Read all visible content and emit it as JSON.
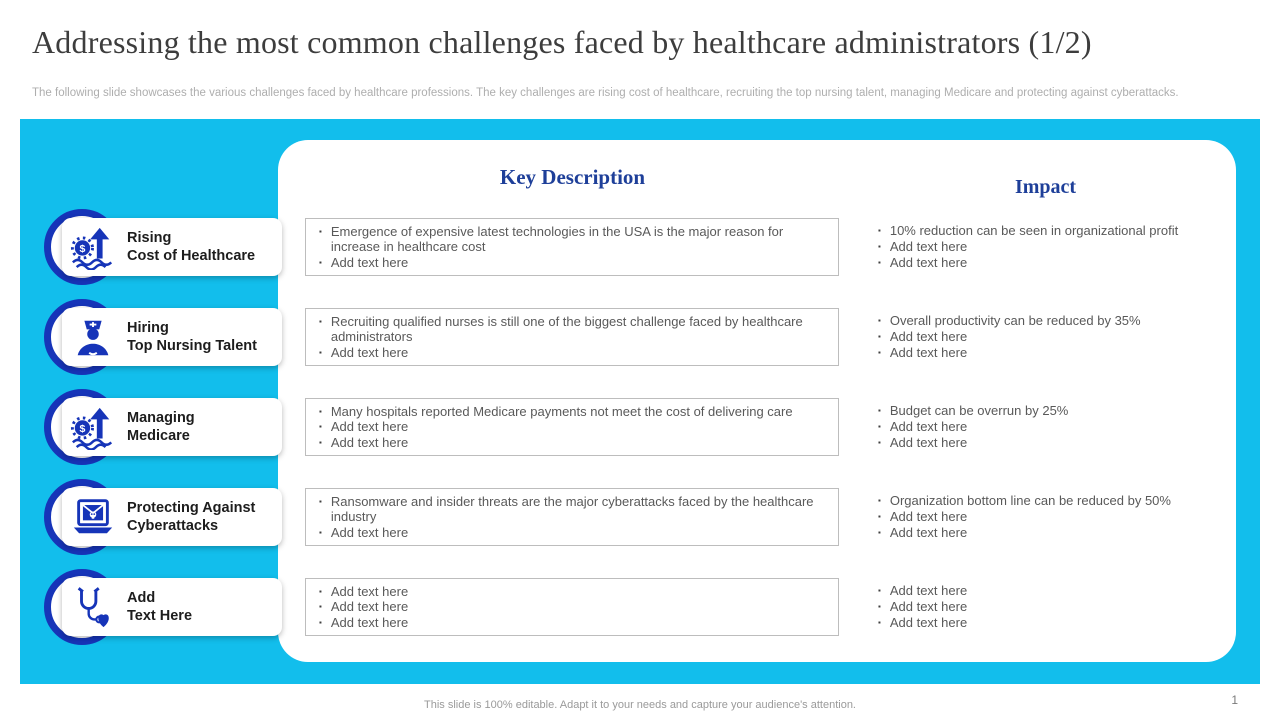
{
  "slide": {
    "title": "Addressing the most common challenges faced by healthcare administrators (1/2)",
    "subtitle": "The following slide showcases the various challenges faced by healthcare professions. The key challenges are rising cost of healthcare, recruiting the top nursing talent, managing Medicare and protecting against cyberattacks.",
    "footer": "This slide is 100% editable. Adapt it to your needs and capture your audience's attention.",
    "page_number": "1"
  },
  "colors": {
    "accent_cyan": "#12beec",
    "icon_navy": "#1634b8",
    "header_blue": "#1e3f99"
  },
  "table": {
    "col1_header": "Key Description",
    "col2_header": "Impact",
    "rows": [
      {
        "icon": "money-growth-icon",
        "label_line1": "Rising",
        "label_line2": "Cost of Healthcare",
        "description": [
          "Emergence of expensive latest technologies in the USA is the major reason for increase in healthcare cost",
          "Add text here"
        ],
        "impact": [
          "10% reduction can be seen in organizational profit",
          "Add text here",
          "Add text here"
        ]
      },
      {
        "icon": "nurse-icon",
        "label_line1": "Hiring",
        "label_line2": "Top Nursing Talent",
        "description": [
          "Recruiting qualified nurses is still one of the biggest challenge faced by healthcare administrators",
          "Add text here"
        ],
        "impact": [
          "Overall productivity can be reduced by 35%",
          "Add text here",
          "Add text here"
        ]
      },
      {
        "icon": "medicare-money-icon",
        "label_line1": "Managing",
        "label_line2": "Medicare",
        "description": [
          "Many hospitals reported Medicare payments not meet the cost of delivering care",
          "Add text here",
          "Add text here"
        ],
        "impact": [
          "Budget can be overrun by 25%",
          "Add text here",
          "Add text here"
        ]
      },
      {
        "icon": "cyberattack-laptop-icon",
        "label_line1": "Protecting Against",
        "label_line2": "Cyberattacks",
        "description": [
          "Ransomware and insider threats are the major cyberattacks faced by the healthcare industry",
          "Add text here"
        ],
        "impact": [
          "Organization bottom line can be reduced by 50%",
          "Add text here",
          "Add text here"
        ]
      },
      {
        "icon": "stethoscope-heart-icon",
        "label_line1": "Add",
        "label_line2": "Text Here",
        "description": [
          "Add text here",
          "Add text here",
          "Add text here"
        ],
        "impact": [
          "Add text here",
          "Add text here",
          "Add text here"
        ]
      }
    ]
  }
}
